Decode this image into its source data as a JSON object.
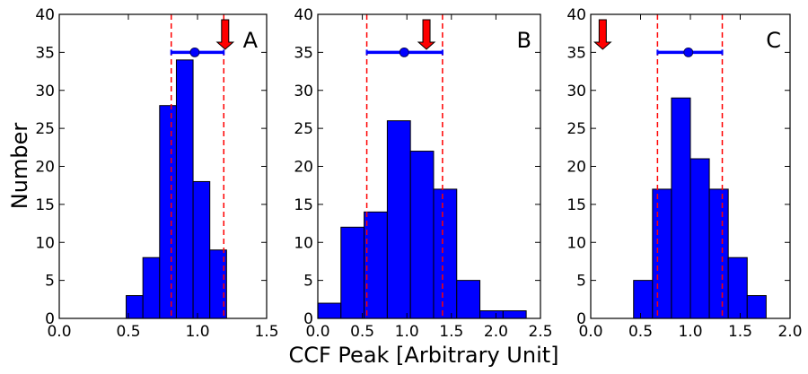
{
  "chart_data": {
    "type": "bar",
    "xlabel": "CCF Peak [Arbitrary Unit]",
    "ylabel": "Number",
    "colors": {
      "bar": "#0000ff",
      "edge": "#000000",
      "ref_line": "#ff0000",
      "marker": "#0000ff",
      "arrow": "#ff0000"
    },
    "panels": [
      {
        "label": "A",
        "xlim": [
          0.0,
          1.5
        ],
        "ylim": [
          0,
          40
        ],
        "xticks": [
          "0.0",
          "0.5",
          "1.0",
          "1.5"
        ],
        "yticks": [
          "0",
          "5",
          "10",
          "15",
          "20",
          "25",
          "30",
          "35",
          "40"
        ],
        "bins": [
          {
            "x0": 0.484,
            "x1": 0.605,
            "value": 3
          },
          {
            "x0": 0.605,
            "x1": 0.726,
            "value": 8
          },
          {
            "x0": 0.726,
            "x1": 0.847,
            "value": 28
          },
          {
            "x0": 0.847,
            "x1": 0.968,
            "value": 34
          },
          {
            "x0": 0.968,
            "x1": 1.089,
            "value": 18
          },
          {
            "x0": 1.089,
            "x1": 1.21,
            "value": 9
          }
        ],
        "ref_lines": [
          0.81,
          1.19
        ],
        "mean": 0.98,
        "error_bar": [
          0.81,
          1.19
        ],
        "error_bar_y": 35,
        "arrow_x": 1.2
      },
      {
        "label": "B",
        "xlim": [
          0.0,
          2.5
        ],
        "ylim": [
          0,
          40
        ],
        "xticks": [
          "0.0",
          "0.5",
          "1.0",
          "1.5",
          "2.0",
          "2.5"
        ],
        "yticks": [
          "0",
          "5",
          "10",
          "15",
          "20",
          "25",
          "30",
          "35",
          "40"
        ],
        "bins": [
          {
            "x0": 0.0,
            "x1": 0.26,
            "value": 2
          },
          {
            "x0": 0.26,
            "x1": 0.52,
            "value": 12
          },
          {
            "x0": 0.52,
            "x1": 0.78,
            "value": 14
          },
          {
            "x0": 0.78,
            "x1": 1.04,
            "value": 26
          },
          {
            "x0": 1.04,
            "x1": 1.3,
            "value": 22
          },
          {
            "x0": 1.3,
            "x1": 1.56,
            "value": 17
          },
          {
            "x0": 1.56,
            "x1": 1.82,
            "value": 5
          },
          {
            "x0": 1.82,
            "x1": 2.08,
            "value": 1
          },
          {
            "x0": 2.08,
            "x1": 2.34,
            "value": 1
          }
        ],
        "ref_lines": [
          0.55,
          1.4
        ],
        "mean": 0.97,
        "error_bar": [
          0.55,
          1.4
        ],
        "error_bar_y": 35,
        "arrow_x": 1.22
      },
      {
        "label": "C",
        "xlim": [
          0.0,
          2.0
        ],
        "ylim": [
          0,
          40
        ],
        "xticks": [
          "0.0",
          "0.5",
          "1.0",
          "1.5",
          "2.0"
        ],
        "yticks": [
          "0",
          "5",
          "10",
          "15",
          "20",
          "25",
          "30",
          "35",
          "40"
        ],
        "bins": [
          {
            "x0": 0.43,
            "x1": 0.62,
            "value": 5
          },
          {
            "x0": 0.62,
            "x1": 0.81,
            "value": 17
          },
          {
            "x0": 0.81,
            "x1": 1.0,
            "value": 29
          },
          {
            "x0": 1.0,
            "x1": 1.19,
            "value": 21
          },
          {
            "x0": 1.19,
            "x1": 1.38,
            "value": 17
          },
          {
            "x0": 1.38,
            "x1": 1.57,
            "value": 8
          },
          {
            "x0": 1.57,
            "x1": 1.76,
            "value": 3
          }
        ],
        "ref_lines": [
          0.67,
          1.32
        ],
        "mean": 0.98,
        "error_bar": [
          0.67,
          1.32
        ],
        "error_bar_y": 35,
        "arrow_x": 0.12
      }
    ]
  }
}
